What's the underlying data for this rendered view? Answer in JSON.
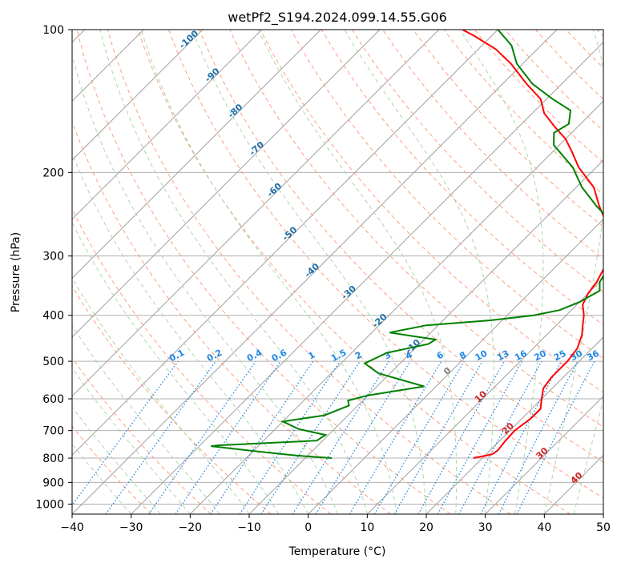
{
  "chart_data": {
    "type": "line",
    "title": "wetPf2_S194.2024.099.14.55.G06",
    "xlabel": "Temperature (°C)",
    "ylabel": "Pressure (hPa)",
    "xlim": [
      -40,
      50
    ],
    "ylim": [
      1050,
      100
    ],
    "y_scale": "log",
    "grid": true,
    "x_ticks": [
      -40,
      -30,
      -20,
      -10,
      0,
      10,
      20,
      30,
      40,
      50
    ],
    "y_ticks": [
      1000,
      900,
      800,
      700,
      600,
      500,
      400,
      300,
      200,
      100
    ],
    "skew": true,
    "series": [
      {
        "color": "#ff0000",
        "role": "temperature",
        "points": [
          [
            18.5,
            800
          ],
          [
            21,
            785
          ],
          [
            21.3,
            770
          ],
          [
            21,
            740
          ],
          [
            20.8,
            700
          ],
          [
            21.5,
            660
          ],
          [
            21.5,
            630
          ],
          [
            20,
            600
          ],
          [
            18.5,
            570
          ],
          [
            18,
            540
          ],
          [
            18,
            500
          ],
          [
            17.5,
            470
          ],
          [
            16,
            440
          ],
          [
            14.5,
            420
          ],
          [
            13,
            400
          ],
          [
            11,
            380
          ],
          [
            10,
            360
          ],
          [
            9.5,
            340
          ],
          [
            8,
            310
          ],
          [
            5,
            280
          ],
          [
            2,
            260
          ],
          [
            -3,
            235
          ],
          [
            -7,
            215
          ],
          [
            -13,
            195
          ],
          [
            -17,
            180
          ],
          [
            -20,
            170
          ],
          [
            -24,
            160
          ],
          [
            -28,
            150
          ],
          [
            -31,
            140
          ],
          [
            -36,
            130
          ],
          [
            -42,
            118
          ],
          [
            -47,
            110
          ],
          [
            -53,
            103
          ],
          [
            -56,
            100
          ]
        ]
      },
      {
        "color": "#008000",
        "role": "dewpoint",
        "points": [
          [
            -5.5,
            800
          ],
          [
            -12,
            790
          ],
          [
            -19,
            775
          ],
          [
            -28,
            755
          ],
          [
            -27,
            752
          ],
          [
            -11,
            735
          ],
          [
            -10.5,
            715
          ],
          [
            -16,
            695
          ],
          [
            -20,
            670
          ],
          [
            -14,
            650
          ],
          [
            -11.5,
            620
          ],
          [
            -12.5,
            605
          ],
          [
            -10,
            590
          ],
          [
            -2,
            565
          ],
          [
            -12,
            530
          ],
          [
            -16,
            505
          ],
          [
            -14,
            480
          ],
          [
            -8.5,
            460
          ],
          [
            -8,
            450
          ],
          [
            -17,
            435
          ],
          [
            -12,
            420
          ],
          [
            -2,
            410
          ],
          [
            4.5,
            400
          ],
          [
            8,
            390
          ],
          [
            10,
            375
          ],
          [
            11.5,
            355
          ],
          [
            10,
            340
          ],
          [
            9,
            315
          ],
          [
            8,
            295
          ],
          [
            5.5,
            275
          ],
          [
            2,
            255
          ],
          [
            -3.5,
            235
          ],
          [
            -9,
            215
          ],
          [
            -14,
            195
          ],
          [
            -21,
            175
          ],
          [
            -23,
            165
          ],
          [
            -22,
            158
          ],
          [
            -24,
            148
          ],
          [
            -29,
            140
          ],
          [
            -35,
            130
          ],
          [
            -41,
            118
          ],
          [
            -45,
            108
          ],
          [
            -50,
            100
          ]
        ]
      }
    ],
    "dry_adiabat_labels": [
      "-100",
      "-90",
      "-80",
      "-70",
      "-60",
      "-50",
      "-40",
      "-30",
      "-20",
      "-10"
    ],
    "moist_adiabat_labels": [
      "0",
      "10",
      "20",
      "30",
      "40"
    ],
    "mixing_ratio_labels": [
      "0.1",
      "0.2",
      "0.4",
      "0.6",
      "1",
      "1.5",
      "2",
      "3",
      "4",
      "6",
      "8",
      "10",
      "13",
      "16",
      "20",
      "25",
      "30",
      "36"
    ],
    "colors": {
      "temperature": "#ff0000",
      "dewpoint": "#008000",
      "dry_adiabat": "#ff9e80",
      "moist_adiabat": "#a8d8a8",
      "mixing_ratio": "#1e88e5",
      "isotherm": "#808080",
      "dry_label": "#1f6fa8",
      "moist_label": "#cc2222"
    }
  }
}
